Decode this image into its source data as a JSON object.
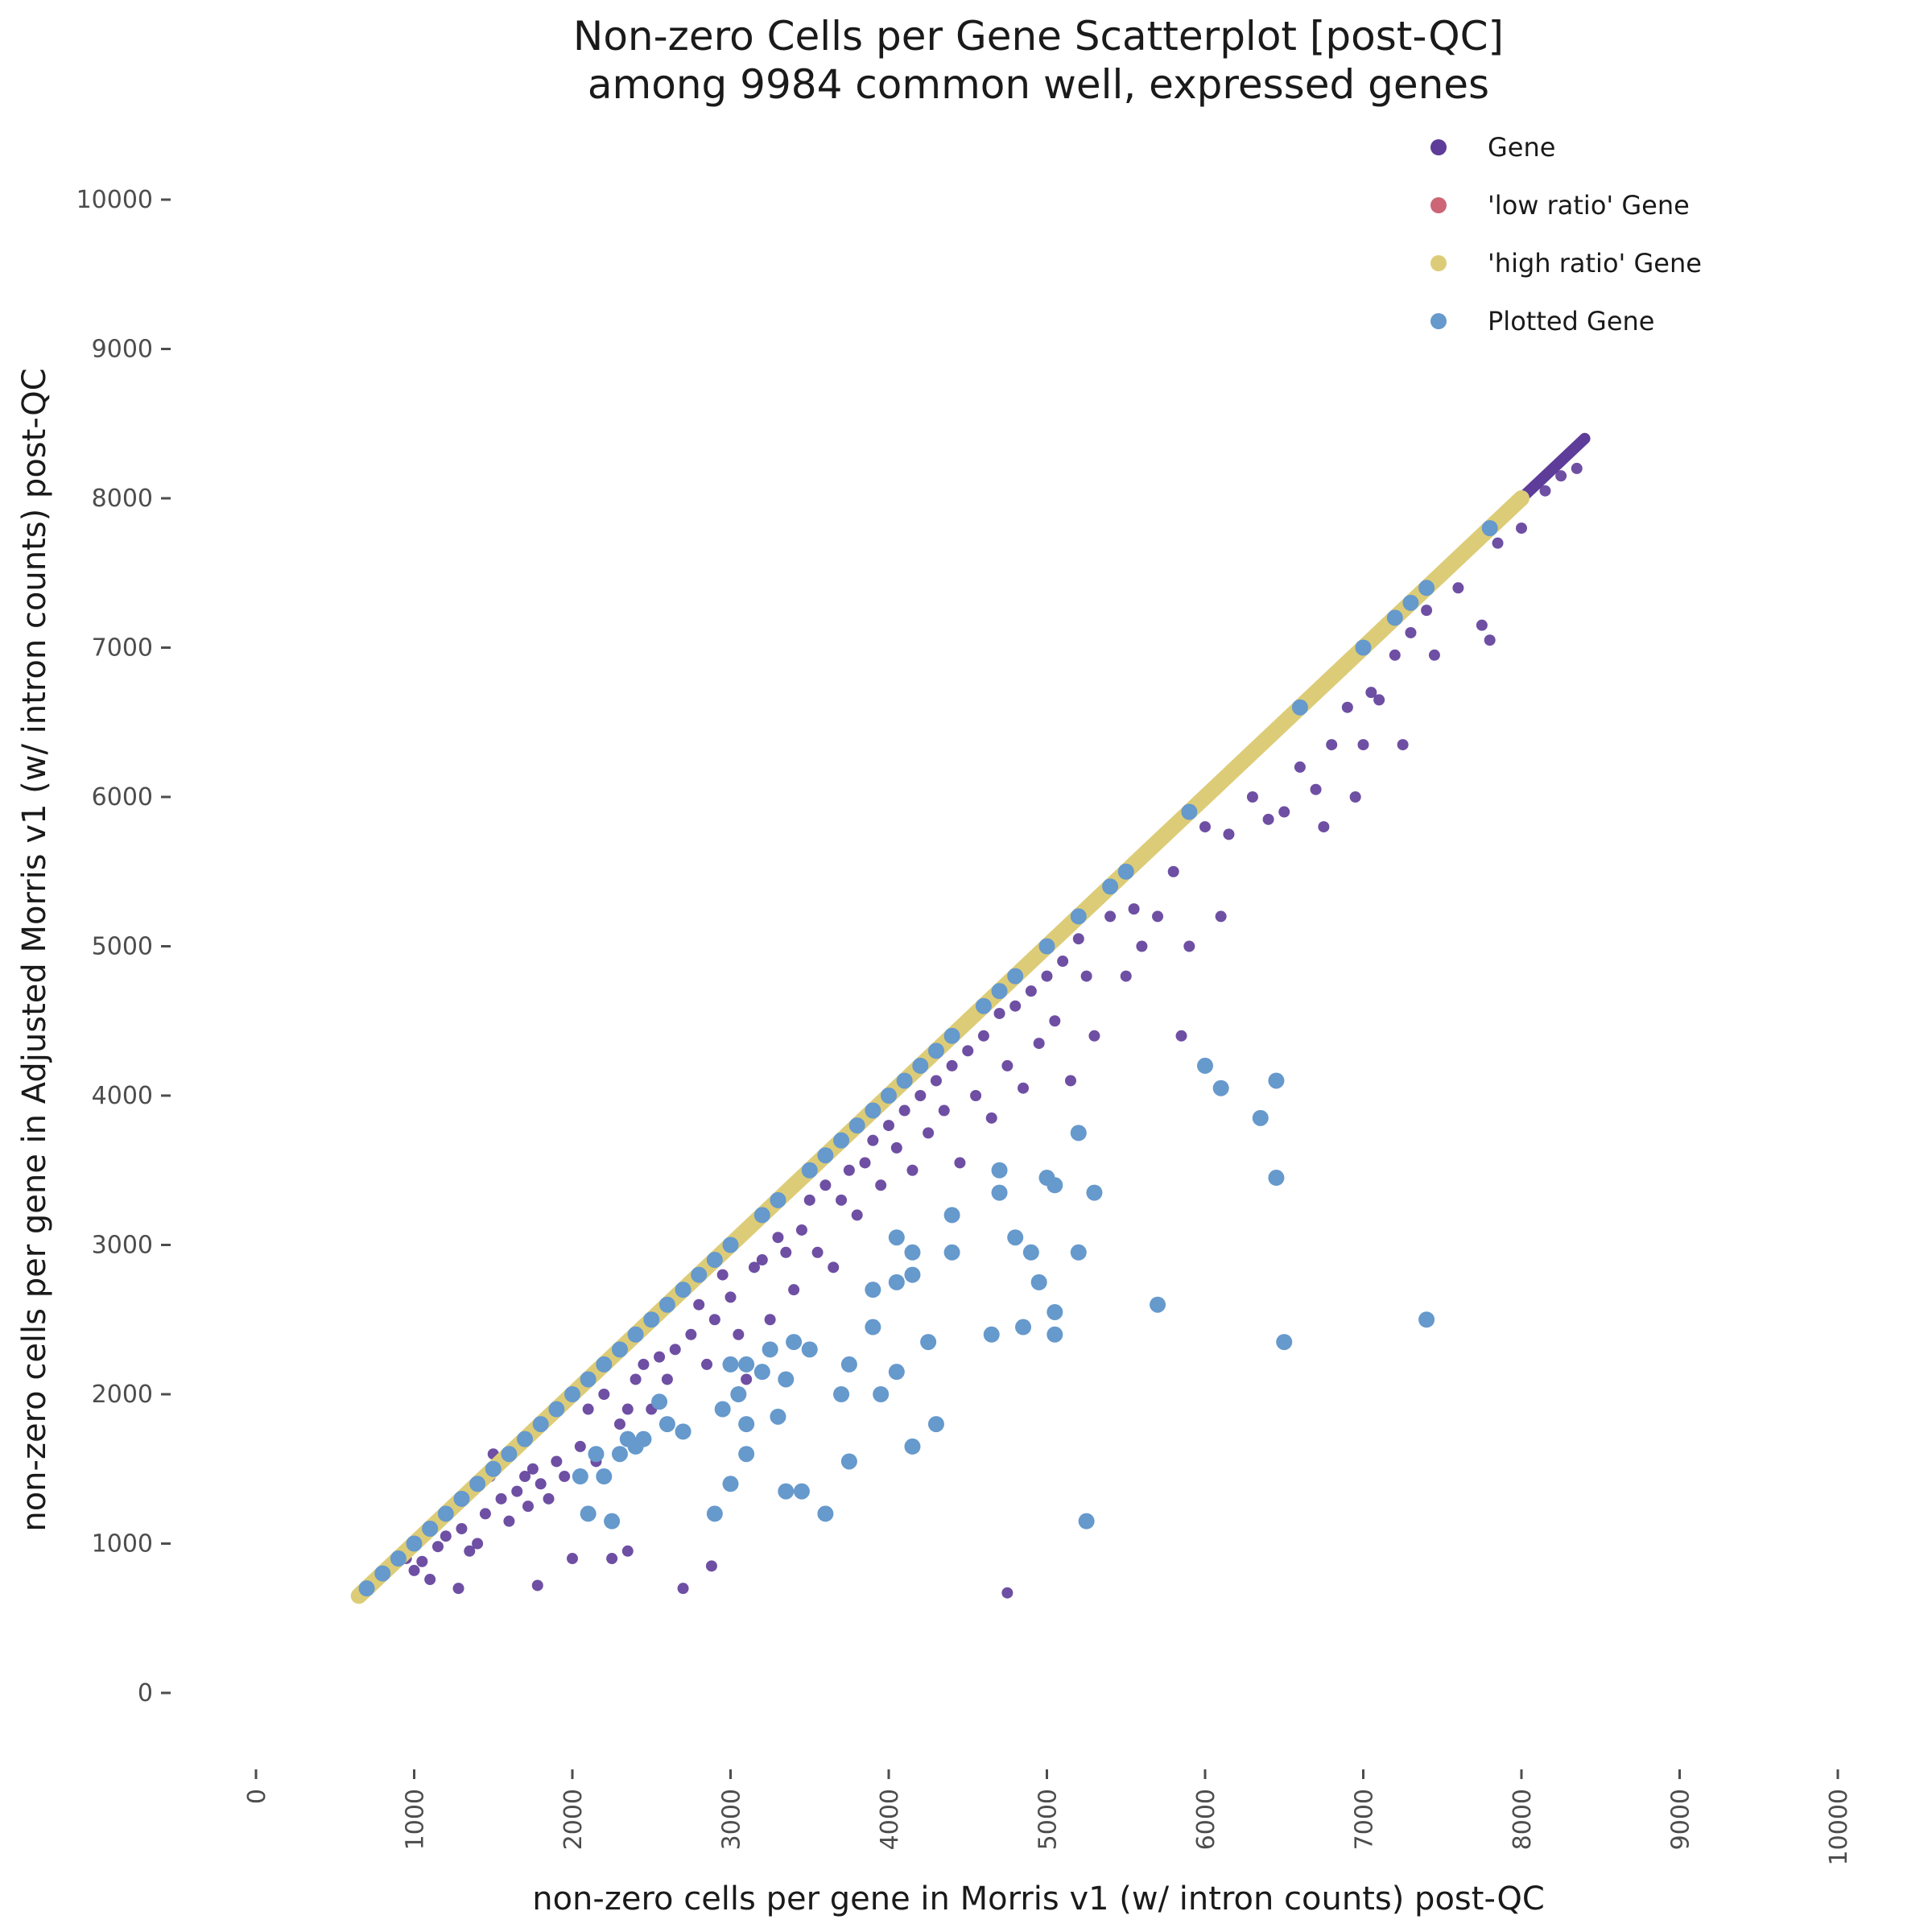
{
  "chart_data": {
    "type": "scatter",
    "title": "Non-zero Cells per Gene Scatterplot [post-QC]",
    "subtitle": "among 9984 common well, expressed genes",
    "xlabel": "non-zero cells per gene in Morris v1 (w/ intron counts) post-QC",
    "ylabel": "non-zero cells per gene in Adjusted Morris v1 (w/ intron counts) post-QC",
    "xlim": [
      0,
      10000
    ],
    "ylim": [
      0,
      10000
    ],
    "x_ticks": [
      "0",
      "1000",
      "2000",
      "3000",
      "4000",
      "5000",
      "6000",
      "7000",
      "8000",
      "9000",
      "10000"
    ],
    "y_ticks": [
      "0",
      "1000",
      "2000",
      "3000",
      "4000",
      "5000",
      "6000",
      "7000",
      "8000",
      "9000",
      "10000"
    ],
    "grid": false,
    "legend_position": "top-right",
    "series": [
      {
        "name": "Gene",
        "color": "#5e3c99",
        "diagonal": [
          650,
          8400
        ],
        "points": [
          [
            950,
            900
          ],
          [
            1000,
            820
          ],
          [
            1050,
            880
          ],
          [
            1100,
            760
          ],
          [
            1150,
            980
          ],
          [
            1200,
            1050
          ],
          [
            1280,
            700
          ],
          [
            1300,
            1100
          ],
          [
            1350,
            950
          ],
          [
            1400,
            1000
          ],
          [
            1450,
            1200
          ],
          [
            1480,
            1450
          ],
          [
            1500,
            1600
          ],
          [
            1550,
            1300
          ],
          [
            1600,
            1150
          ],
          [
            1650,
            1350
          ],
          [
            1700,
            1450
          ],
          [
            1720,
            1250
          ],
          [
            1750,
            1500
          ],
          [
            1780,
            720
          ],
          [
            1800,
            1400
          ],
          [
            1850,
            1300
          ],
          [
            1900,
            1550
          ],
          [
            1950,
            1450
          ],
          [
            2000,
            900
          ],
          [
            2050,
            1650
          ],
          [
            2100,
            1900
          ],
          [
            2150,
            1550
          ],
          [
            2200,
            2000
          ],
          [
            2250,
            900
          ],
          [
            2300,
            1800
          ],
          [
            2350,
            1900
          ],
          [
            2350,
            950
          ],
          [
            2400,
            2100
          ],
          [
            2450,
            2200
          ],
          [
            2500,
            1900
          ],
          [
            2550,
            2250
          ],
          [
            2600,
            2100
          ],
          [
            2650,
            2300
          ],
          [
            2700,
            1750
          ],
          [
            2700,
            700
          ],
          [
            2750,
            2400
          ],
          [
            2800,
            2600
          ],
          [
            2850,
            2200
          ],
          [
            2880,
            850
          ],
          [
            2900,
            2500
          ],
          [
            2950,
            2800
          ],
          [
            3000,
            2650
          ],
          [
            3050,
            2400
          ],
          [
            3100,
            2100
          ],
          [
            3150,
            2850
          ],
          [
            3200,
            2900
          ],
          [
            3250,
            2500
          ],
          [
            3300,
            3050
          ],
          [
            3350,
            2950
          ],
          [
            3400,
            2700
          ],
          [
            3450,
            3100
          ],
          [
            3500,
            3300
          ],
          [
            3550,
            2950
          ],
          [
            3600,
            3400
          ],
          [
            3650,
            2850
          ],
          [
            3700,
            3300
          ],
          [
            3750,
            3500
          ],
          [
            3800,
            3200
          ],
          [
            3850,
            3550
          ],
          [
            3900,
            3700
          ],
          [
            3950,
            3400
          ],
          [
            4000,
            3800
          ],
          [
            4050,
            3650
          ],
          [
            4100,
            3900
          ],
          [
            4150,
            3500
          ],
          [
            4200,
            4000
          ],
          [
            4250,
            3750
          ],
          [
            4300,
            4100
          ],
          [
            4350,
            3900
          ],
          [
            4400,
            4200
          ],
          [
            4450,
            3550
          ],
          [
            4500,
            4300
          ],
          [
            4550,
            4000
          ],
          [
            4600,
            4400
          ],
          [
            4650,
            3850
          ],
          [
            4700,
            4550
          ],
          [
            4750,
            4200
          ],
          [
            4800,
            4600
          ],
          [
            4850,
            4050
          ],
          [
            4900,
            4700
          ],
          [
            4950,
            4350
          ],
          [
            5000,
            4800
          ],
          [
            5050,
            4500
          ],
          [
            5100,
            4900
          ],
          [
            5150,
            4100
          ],
          [
            5200,
            5050
          ],
          [
            5250,
            4800
          ],
          [
            5300,
            4400
          ],
          [
            5400,
            5200
          ],
          [
            5500,
            4800
          ],
          [
            5550,
            5250
          ],
          [
            5600,
            5000
          ],
          [
            5700,
            5200
          ],
          [
            5800,
            5500
          ],
          [
            5850,
            4400
          ],
          [
            5900,
            5000
          ],
          [
            6000,
            5800
          ],
          [
            6100,
            5200
          ],
          [
            6150,
            5750
          ],
          [
            6300,
            6000
          ],
          [
            6400,
            5850
          ],
          [
            6500,
            5900
          ],
          [
            6600,
            6200
          ],
          [
            6700,
            6050
          ],
          [
            6750,
            5800
          ],
          [
            6800,
            6350
          ],
          [
            6900,
            6600
          ],
          [
            6950,
            6000
          ],
          [
            7000,
            6350
          ],
          [
            7050,
            6700
          ],
          [
            7100,
            6650
          ],
          [
            7200,
            6950
          ],
          [
            7250,
            6350
          ],
          [
            7300,
            7100
          ],
          [
            7400,
            7250
          ],
          [
            7450,
            6950
          ],
          [
            7600,
            7400
          ],
          [
            7750,
            7150
          ],
          [
            7800,
            7050
          ],
          [
            7850,
            7700
          ],
          [
            8000,
            7800
          ],
          [
            8150,
            8050
          ],
          [
            8250,
            8150
          ],
          [
            8350,
            8200
          ],
          [
            4750,
            670
          ]
        ]
      },
      {
        "name": "'low ratio' Gene",
        "color": "#cc6677",
        "points": []
      },
      {
        "name": "'high ratio' Gene",
        "color": "#ddcc77",
        "diagonal": [
          650,
          8000
        ],
        "points": []
      },
      {
        "name": "Plotted Gene",
        "color": "#6699cc",
        "diagonal_points": [
          700,
          800,
          900,
          1000,
          1100,
          1200,
          1300,
          1400,
          1500,
          1600,
          1700,
          1800,
          1900,
          2000,
          2100,
          2200,
          2300,
          2400,
          2500,
          2600,
          2700,
          2800,
          2900,
          3000,
          3200,
          3300,
          3500,
          3600,
          3700,
          3800,
          3900,
          4000,
          4100,
          4200,
          4300,
          4400,
          4600,
          4700,
          4800,
          5000,
          5200,
          5400,
          5500,
          5900,
          6600,
          7000,
          7200,
          7300,
          7400,
          7800
        ],
        "points": [
          [
            2050,
            1450
          ],
          [
            2100,
            1200
          ],
          [
            2150,
            1600
          ],
          [
            2200,
            1450
          ],
          [
            2250,
            1150
          ],
          [
            2300,
            1600
          ],
          [
            2350,
            1700
          ],
          [
            2400,
            1650
          ],
          [
            2450,
            1700
          ],
          [
            2550,
            1950
          ],
          [
            2600,
            1800
          ],
          [
            2700,
            1750
          ],
          [
            2900,
            1200
          ],
          [
            2950,
            1900
          ],
          [
            3000,
            2200
          ],
          [
            3000,
            1400
          ],
          [
            3050,
            2000
          ],
          [
            3100,
            2200
          ],
          [
            3100,
            1800
          ],
          [
            3100,
            1600
          ],
          [
            3200,
            2150
          ],
          [
            3250,
            2300
          ],
          [
            3300,
            1850
          ],
          [
            3350,
            2100
          ],
          [
            3350,
            1350
          ],
          [
            3400,
            2350
          ],
          [
            3450,
            1350
          ],
          [
            3500,
            2300
          ],
          [
            3600,
            1200
          ],
          [
            3700,
            2000
          ],
          [
            3750,
            2200
          ],
          [
            3750,
            1550
          ],
          [
            3900,
            2700
          ],
          [
            3900,
            2450
          ],
          [
            3950,
            2000
          ],
          [
            4050,
            2150
          ],
          [
            4050,
            3050
          ],
          [
            4050,
            2750
          ],
          [
            4150,
            2800
          ],
          [
            4150,
            2950
          ],
          [
            4150,
            1650
          ],
          [
            4250,
            2350
          ],
          [
            4300,
            1800
          ],
          [
            4400,
            3200
          ],
          [
            4400,
            2950
          ],
          [
            4650,
            2400
          ],
          [
            4700,
            3500
          ],
          [
            4700,
            3350
          ],
          [
            4800,
            3050
          ],
          [
            4850,
            2450
          ],
          [
            4900,
            2950
          ],
          [
            4950,
            2750
          ],
          [
            5000,
            3450
          ],
          [
            5050,
            3400
          ],
          [
            5050,
            2550
          ],
          [
            5050,
            2400
          ],
          [
            5200,
            3750
          ],
          [
            5200,
            2950
          ],
          [
            5250,
            1150
          ],
          [
            5300,
            3350
          ],
          [
            5700,
            2600
          ],
          [
            6000,
            4200
          ],
          [
            6100,
            4050
          ],
          [
            6350,
            3850
          ],
          [
            6450,
            4100
          ],
          [
            6450,
            3450
          ],
          [
            6500,
            2350
          ],
          [
            7400,
            2500
          ]
        ]
      }
    ]
  }
}
